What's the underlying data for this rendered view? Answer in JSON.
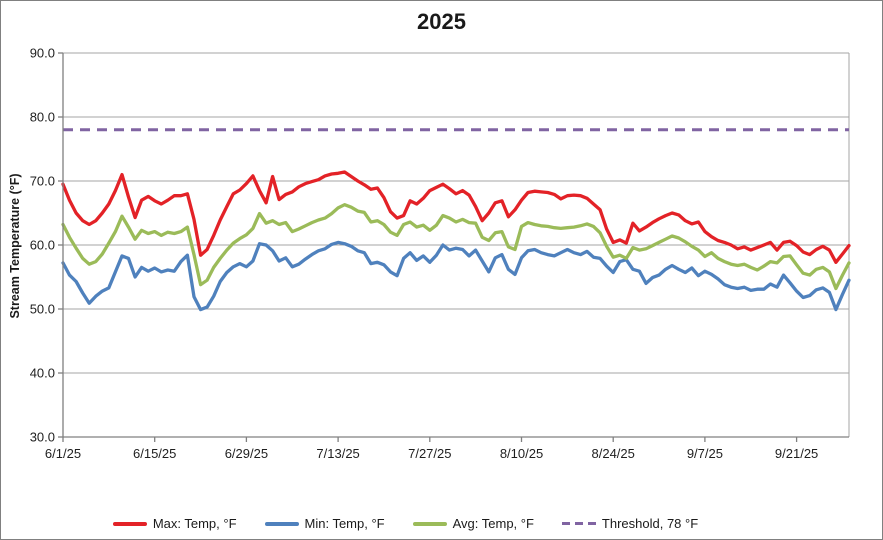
{
  "window": {
    "background": "#ffffff",
    "border_color": "#808080"
  },
  "title": "2025",
  "y_axis": {
    "title": "Stream Temperature (°F)",
    "tick_labels": [
      "90.0",
      "80.0",
      "70.0",
      "60.0",
      "50.0",
      "40.0",
      "30.0"
    ],
    "min": 30,
    "max": 90,
    "step": 10
  },
  "x_axis": {
    "tick_labels": [
      "6/1/25",
      "6/15/25",
      "6/29/25",
      "7/13/25",
      "7/27/25",
      "8/10/25",
      "8/24/25",
      "9/7/25",
      "9/21/25"
    ],
    "tick_day_indices": [
      0,
      14,
      28,
      42,
      56,
      70,
      84,
      98,
      112
    ]
  },
  "legend": {
    "items": [
      {
        "label": "Max: Temp, °F",
        "color": "#E32227",
        "style": "solid"
      },
      {
        "label": "Min: Temp, °F",
        "color": "#4F81BD",
        "style": "solid"
      },
      {
        "label": "Avg: Temp, °F",
        "color": "#9BBB59",
        "style": "solid"
      },
      {
        "label": "Threshold, 78 °F",
        "color": "#8064A2",
        "style": "dashed"
      }
    ]
  },
  "chart_data": {
    "type": "line",
    "title": "2025",
    "xlabel": "",
    "ylabel": "Stream Temperature (°F)",
    "x_start": "6/1/25",
    "x_end": "9/29/25",
    "x_unit": "daily",
    "n_points": 121,
    "ylim": [
      30,
      90
    ],
    "grid": true,
    "gridline_values": [
      40,
      50,
      60,
      70,
      80,
      90
    ],
    "legend_position": "bottom",
    "threshold": {
      "label": "Threshold, 78 °F",
      "value": 78,
      "color": "#8064A2",
      "style": "dashed"
    },
    "series": [
      {
        "name": "Max: Temp, °F",
        "color": "#E32227",
        "values": [
          69.5,
          67.0,
          65.0,
          63.8,
          63.2,
          63.8,
          65.0,
          66.4,
          68.5,
          71.0,
          67.5,
          64.3,
          67.0,
          67.6,
          66.9,
          66.4,
          67.0,
          67.7,
          67.7,
          68.0,
          64.0,
          58.4,
          59.3,
          61.5,
          63.9,
          66.0,
          68.0,
          68.6,
          69.6,
          70.8,
          68.5,
          66.6,
          70.7,
          67.1,
          67.9,
          68.3,
          69.1,
          69.6,
          69.9,
          70.2,
          70.8,
          71.1,
          71.2,
          71.4,
          70.7,
          70.0,
          69.4,
          68.7,
          68.9,
          67.4,
          65.2,
          64.2,
          64.6,
          66.9,
          66.4,
          67.3,
          68.5,
          69.0,
          69.5,
          68.8,
          68.0,
          68.5,
          67.8,
          66.0,
          63.8,
          65.0,
          66.6,
          66.9,
          64.4,
          65.5,
          67.0,
          68.2,
          68.4,
          68.3,
          68.2,
          67.9,
          67.2,
          67.7,
          67.8,
          67.7,
          67.3,
          66.4,
          65.5,
          62.5,
          60.4,
          60.8,
          60.3,
          63.4,
          62.2,
          62.8,
          63.5,
          64.1,
          64.6,
          65.0,
          64.7,
          63.8,
          63.3,
          63.6,
          62.1,
          61.3,
          60.7,
          60.4,
          60.0,
          59.4,
          59.7,
          59.2,
          59.6,
          60.0,
          60.4,
          59.2,
          60.4,
          60.6,
          59.9,
          58.9,
          58.5,
          59.3,
          59.8,
          59.2,
          57.3,
          58.6,
          59.9
        ]
      },
      {
        "name": "Min: Temp, °F",
        "color": "#4F81BD",
        "values": [
          57.2,
          55.3,
          54.3,
          52.5,
          50.9,
          52.0,
          52.8,
          53.3,
          55.8,
          58.3,
          57.9,
          55.0,
          56.5,
          55.9,
          56.4,
          55.8,
          56.1,
          55.9,
          57.4,
          58.4,
          51.9,
          49.9,
          50.3,
          52.0,
          54.3,
          55.7,
          56.6,
          57.1,
          56.6,
          57.5,
          60.2,
          60.0,
          59.1,
          57.5,
          58.0,
          56.6,
          57.0,
          57.8,
          58.5,
          59.1,
          59.4,
          60.1,
          60.4,
          60.2,
          59.8,
          59.1,
          58.8,
          57.1,
          57.3,
          56.9,
          55.8,
          55.2,
          57.9,
          58.8,
          57.6,
          58.3,
          57.3,
          58.4,
          60.0,
          59.2,
          59.5,
          59.3,
          58.3,
          59.2,
          57.5,
          55.8,
          58.0,
          58.5,
          56.2,
          55.4,
          58.0,
          59.1,
          59.3,
          58.8,
          58.5,
          58.3,
          58.8,
          59.3,
          58.8,
          58.5,
          59.0,
          58.1,
          57.9,
          56.7,
          55.7,
          57.4,
          57.7,
          56.2,
          55.9,
          54.0,
          54.9,
          55.3,
          56.2,
          56.8,
          56.2,
          55.7,
          56.4,
          55.2,
          55.9,
          55.4,
          54.7,
          53.8,
          53.4,
          53.2,
          53.4,
          52.9,
          53.1,
          53.1,
          53.9,
          53.4,
          55.3,
          54.1,
          52.8,
          51.8,
          52.1,
          53.0,
          53.3,
          52.6,
          49.9,
          52.3,
          54.5
        ]
      },
      {
        "name": "Avg: Temp, °F",
        "color": "#9BBB59",
        "values": [
          63.2,
          61.2,
          59.5,
          57.9,
          57.0,
          57.4,
          58.6,
          60.3,
          62.1,
          64.5,
          62.8,
          60.9,
          62.3,
          61.8,
          62.1,
          61.5,
          62.0,
          61.8,
          62.1,
          62.8,
          58.5,
          53.8,
          54.5,
          56.5,
          57.9,
          59.2,
          60.3,
          61.0,
          61.6,
          62.6,
          64.9,
          63.4,
          63.8,
          63.2,
          63.5,
          62.1,
          62.5,
          63.0,
          63.5,
          63.9,
          64.2,
          64.9,
          65.8,
          66.3,
          65.9,
          65.3,
          65.1,
          63.6,
          63.8,
          63.2,
          62.0,
          61.5,
          63.2,
          63.6,
          62.8,
          63.1,
          62.3,
          63.1,
          64.6,
          64.2,
          63.6,
          64.0,
          63.5,
          63.4,
          61.2,
          60.7,
          61.9,
          62.1,
          59.7,
          59.3,
          62.9,
          63.5,
          63.2,
          63.0,
          62.9,
          62.7,
          62.6,
          62.7,
          62.8,
          63.0,
          63.3,
          62.9,
          61.9,
          59.8,
          58.1,
          58.4,
          57.9,
          59.6,
          59.2,
          59.4,
          59.9,
          60.4,
          60.9,
          61.4,
          61.1,
          60.5,
          59.8,
          59.2,
          58.2,
          58.8,
          57.9,
          57.4,
          57.0,
          56.8,
          57.0,
          56.5,
          56.1,
          56.7,
          57.4,
          57.2,
          58.2,
          58.3,
          56.9,
          55.6,
          55.3,
          56.2,
          56.5,
          55.8,
          53.2,
          55.3,
          57.2
        ]
      }
    ]
  }
}
